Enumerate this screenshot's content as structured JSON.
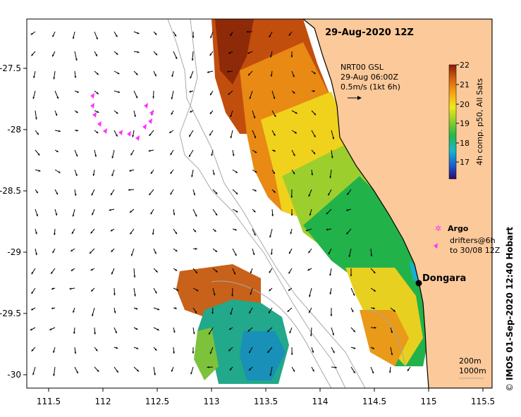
{
  "map": {
    "title": "29-Aug-2020 12Z",
    "data_source": {
      "line1": "NRT00 GSL",
      "line2": "29-Aug 06:00Z",
      "line3": "0.5m/s (1kt 6h)"
    },
    "x_ticks": [
      "111.5",
      "112",
      "112.5",
      "113",
      "113.5",
      "114",
      "114.5",
      "115",
      "115.5"
    ],
    "x_tick_values": [
      111.5,
      112,
      112.5,
      113,
      113.5,
      114,
      114.5,
      115,
      115.5
    ],
    "y_ticks": [
      "-27.5",
      "-28",
      "-28.5",
      "-29",
      "-29.5",
      "-30"
    ],
    "y_tick_values": [
      -27.5,
      -28,
      -28.5,
      -29,
      -29.5,
      -30
    ],
    "lon_range": [
      111.3,
      115.6
    ],
    "lat_range": [
      -27.07,
      -30.12
    ],
    "colorbar": {
      "label": "4h comp. p50, All Sats",
      "ticks": [
        "22",
        "21",
        "20",
        "19",
        "18",
        "17"
      ],
      "range": [
        16.5,
        22
      ],
      "colors": [
        "#2a0b6e",
        "#1a5fd0",
        "#18b8c8",
        "#22b84a",
        "#9ad22a",
        "#f2e81a",
        "#f5a014",
        "#d2600f",
        "#8e1a08"
      ]
    },
    "legend": {
      "argo_label": "Argo",
      "drifters_line1": "drifters@6h",
      "drifters_line2": "to 30/08 12Z"
    },
    "place": {
      "name": "Dongara",
      "lon": 114.93,
      "lat": -29.25
    },
    "scale_labels": {
      "a": "200m",
      "b": "1000m"
    },
    "credit": "IMOS 01-Sep-2020 12:40 Hobart",
    "copyright_symbol": "©",
    "colors": {
      "land": "#fbc99a",
      "ocean": "#ffffff",
      "contour": "#a8a8a8",
      "drifter": "#ff33ff",
      "coast": "#000000"
    }
  }
}
